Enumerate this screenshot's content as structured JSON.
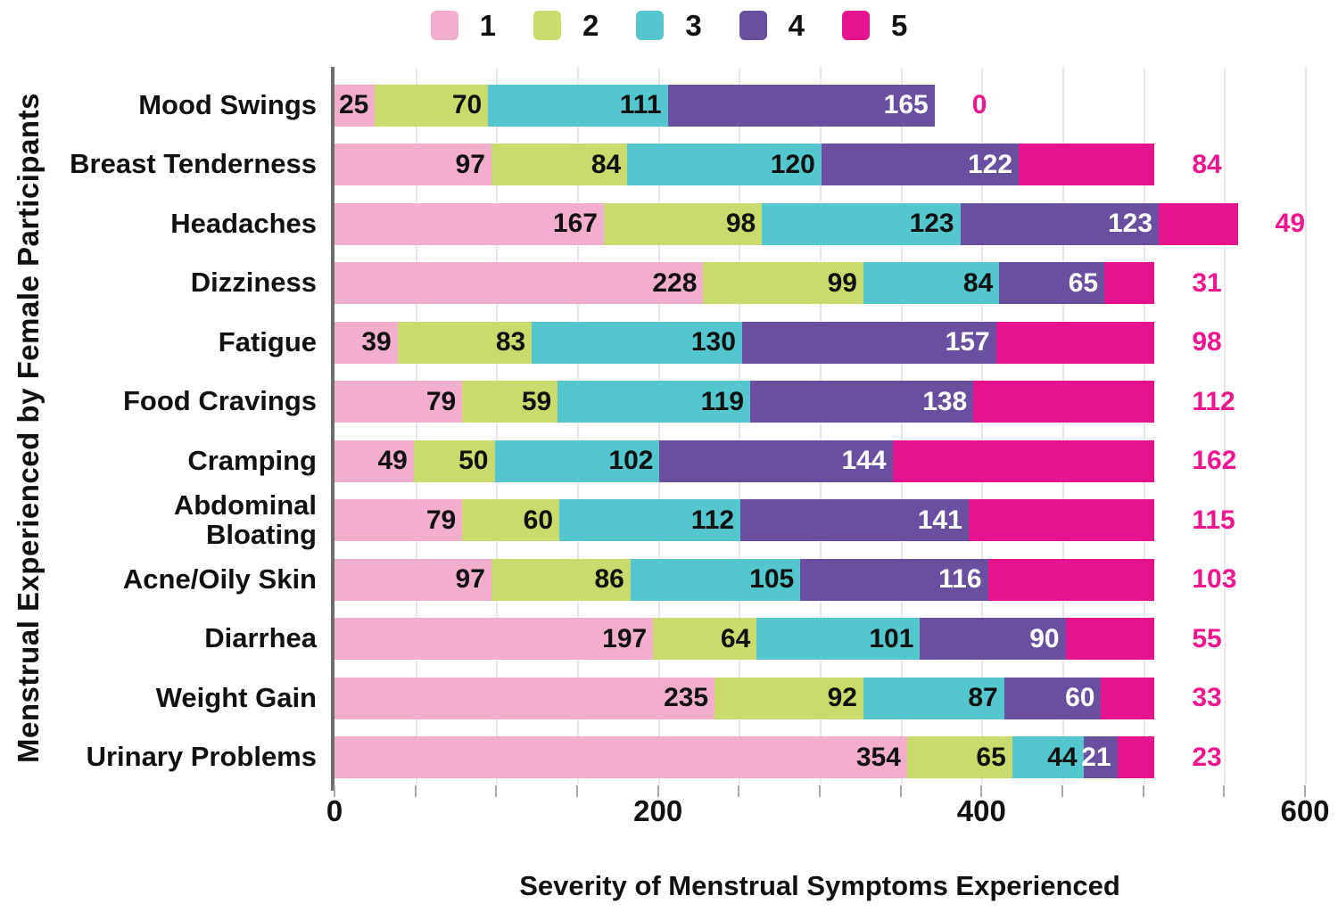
{
  "legend": {
    "items": [
      {
        "label": "1",
        "color": "#F3AECE"
      },
      {
        "label": "2",
        "color": "#CADB6E"
      },
      {
        "label": "3",
        "color": "#54C6CD"
      },
      {
        "label": "4",
        "color": "#6A4EA0"
      },
      {
        "label": "5",
        "color": "#E5138D"
      }
    ]
  },
  "chart_data": {
    "type": "bar",
    "stacked": true,
    "orientation": "horizontal",
    "xlabel": "Severity of Menstrual Symptoms Experienced",
    "ylabel": "Menstrual Experienced by Female Participants",
    "xlim": [
      0,
      600
    ],
    "xticks": [
      0,
      200,
      400,
      600
    ],
    "minor_tick_step": 50,
    "grid_step": 50,
    "grid_on": true,
    "legend_position": "top",
    "categories": [
      "Mood Swings",
      "Breast Tenderness",
      "Headaches",
      "Dizziness",
      "Fatigue",
      "Food Cravings",
      "Cramping",
      "Abdominal\nBloating",
      "Acne/Oily Skin",
      "Diarrhea",
      "Weight Gain",
      "Urinary Problems"
    ],
    "series": [
      {
        "name": "1",
        "color": "#F3AECE",
        "label_color": "#111111",
        "label_outside": false,
        "values": [
          25,
          97,
          167,
          228,
          39,
          79,
          49,
          79,
          97,
          197,
          235,
          354
        ]
      },
      {
        "name": "2",
        "color": "#CADB6E",
        "label_color": "#111111",
        "label_outside": false,
        "values": [
          70,
          84,
          98,
          99,
          83,
          59,
          50,
          60,
          86,
          64,
          92,
          65
        ]
      },
      {
        "name": "3",
        "color": "#54C6CD",
        "label_color": "#111111",
        "label_outside": false,
        "values": [
          111,
          120,
          123,
          84,
          130,
          119,
          102,
          112,
          105,
          101,
          87,
          44
        ]
      },
      {
        "name": "4",
        "color": "#6A4EA0",
        "label_color": "#FFFFFF",
        "label_outside": false,
        "values": [
          165,
          122,
          123,
          65,
          157,
          138,
          144,
          141,
          116,
          90,
          60,
          21
        ]
      },
      {
        "name": "5",
        "color": "#E5138D",
        "label_color": "#ED1690",
        "label_outside": true,
        "values": [
          0,
          84,
          49,
          31,
          98,
          112,
          162,
          115,
          103,
          55,
          33,
          23
        ]
      }
    ]
  }
}
